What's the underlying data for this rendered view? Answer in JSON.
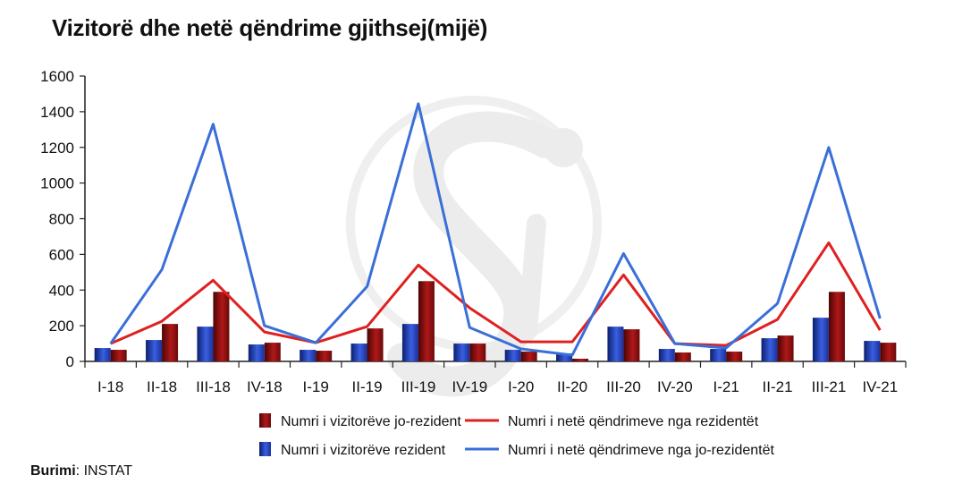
{
  "chart_data": {
    "type": "bar+line",
    "title": "Vizitorë dhe netë qëndrime gjithsej(mijë)",
    "categories": [
      "I-18",
      "II-18",
      "III-18",
      "IV-18",
      "I-19",
      "II-19",
      "III-19",
      "IV-19",
      "I-20",
      "II-20",
      "III-20",
      "IV-20",
      "I-21",
      "II-21",
      "III-21",
      "IV-21"
    ],
    "y_ticks": [
      "0",
      "200",
      "400",
      "600",
      "800",
      "1000",
      "1200",
      "1400",
      "1600"
    ],
    "ylim": [
      0,
      1600
    ],
    "grid": false,
    "legend_position": "bottom",
    "series": [
      {
        "name": "Numri i vizitorëve rezident",
        "kind": "bar",
        "color": "#1f3fbf",
        "values": [
          75,
          120,
          195,
          95,
          65,
          100,
          210,
          100,
          65,
          45,
          195,
          70,
          70,
          130,
          245,
          115
        ]
      },
      {
        "name": "Numri i vizitorëve jo-rezident",
        "kind": "bar",
        "color": "#8b1010",
        "values": [
          65,
          210,
          390,
          105,
          60,
          185,
          450,
          100,
          55,
          15,
          180,
          50,
          55,
          145,
          390,
          105
        ]
      },
      {
        "name": "Numri i netë qëndrimeve nga rezidentët",
        "kind": "line",
        "color": "#e02020",
        "values": [
          100,
          225,
          455,
          165,
          105,
          195,
          540,
          300,
          110,
          110,
          485,
          100,
          90,
          235,
          665,
          175
        ]
      },
      {
        "name": "Numri i netë qëndrimeve nga jo-rezidentët",
        "kind": "line",
        "color": "#3a6fd8",
        "values": [
          100,
          515,
          1330,
          200,
          105,
          420,
          1445,
          190,
          70,
          35,
          605,
          100,
          75,
          325,
          1200,
          240
        ]
      }
    ],
    "legend_order": [
      1,
      2,
      0,
      3
    ]
  },
  "source": {
    "label": "Burimi",
    "value": "INSTAT"
  }
}
